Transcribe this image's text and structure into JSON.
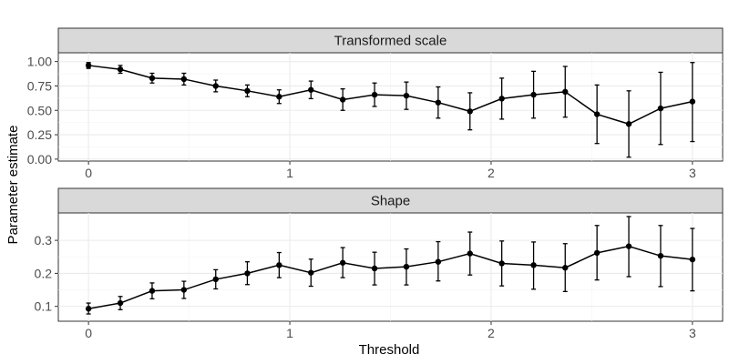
{
  "chart_data": [
    {
      "type": "line",
      "title": "Transformed scale",
      "xlabel": "Threshold",
      "ylabel": "Parameter estimate",
      "xlim": [
        -0.15,
        3.15
      ],
      "ylim": [
        -0.02,
        1.09
      ],
      "xticks": [
        0,
        1,
        2,
        3
      ],
      "xtick_labels": [
        "0",
        "1",
        "2",
        "3"
      ],
      "yticks": [
        0,
        0.25,
        0.5,
        0.75,
        1.0
      ],
      "ytick_labels": [
        "0.00",
        "0.25",
        "0.50",
        "0.75",
        "1.00"
      ],
      "grid": true,
      "series": [
        {
          "x": [
            0,
            0.158,
            0.316,
            0.474,
            0.632,
            0.789,
            0.947,
            1.105,
            1.263,
            1.421,
            1.579,
            1.737,
            1.895,
            2.053,
            2.211,
            2.368,
            2.526,
            2.684,
            2.842,
            3.0
          ],
          "y": [
            0.96,
            0.92,
            0.83,
            0.82,
            0.75,
            0.7,
            0.64,
            0.71,
            0.61,
            0.66,
            0.65,
            0.58,
            0.49,
            0.62,
            0.66,
            0.69,
            0.46,
            0.36,
            0.52,
            0.59
          ],
          "lower": [
            0.93,
            0.88,
            0.78,
            0.76,
            0.69,
            0.64,
            0.57,
            0.62,
            0.5,
            0.54,
            0.51,
            0.42,
            0.3,
            0.41,
            0.42,
            0.43,
            0.16,
            0.02,
            0.15,
            0.18
          ],
          "upper": [
            0.99,
            0.96,
            0.88,
            0.88,
            0.81,
            0.76,
            0.71,
            0.8,
            0.72,
            0.78,
            0.79,
            0.74,
            0.68,
            0.83,
            0.9,
            0.95,
            0.76,
            0.7,
            0.89,
            0.99
          ]
        }
      ]
    },
    {
      "type": "line",
      "title": "Shape",
      "xlabel": "Threshold",
      "ylabel": "Parameter estimate",
      "xlim": [
        -0.15,
        3.15
      ],
      "ylim": [
        0.055,
        0.383
      ],
      "xticks": [
        0,
        1,
        2,
        3
      ],
      "xtick_labels": [
        "0",
        "1",
        "2",
        "3"
      ],
      "yticks": [
        0.1,
        0.2,
        0.3
      ],
      "ytick_labels": [
        "0.1",
        "0.2",
        "0.3"
      ],
      "grid": true,
      "series": [
        {
          "x": [
            0,
            0.158,
            0.316,
            0.474,
            0.632,
            0.789,
            0.947,
            1.105,
            1.263,
            1.421,
            1.579,
            1.737,
            1.895,
            2.053,
            2.211,
            2.368,
            2.526,
            2.684,
            2.842,
            3.0
          ],
          "y": [
            0.093,
            0.11,
            0.147,
            0.15,
            0.182,
            0.2,
            0.225,
            0.202,
            0.232,
            0.215,
            0.22,
            0.235,
            0.26,
            0.23,
            0.225,
            0.217,
            0.262,
            0.282,
            0.253,
            0.242
          ],
          "lower": [
            0.077,
            0.09,
            0.123,
            0.124,
            0.153,
            0.166,
            0.187,
            0.161,
            0.187,
            0.165,
            0.165,
            0.177,
            0.195,
            0.162,
            0.152,
            0.145,
            0.18,
            0.19,
            0.16,
            0.147
          ],
          "upper": [
            0.11,
            0.13,
            0.171,
            0.176,
            0.211,
            0.235,
            0.263,
            0.243,
            0.278,
            0.264,
            0.274,
            0.296,
            0.325,
            0.298,
            0.295,
            0.29,
            0.345,
            0.372,
            0.345,
            0.336
          ]
        }
      ]
    }
  ]
}
